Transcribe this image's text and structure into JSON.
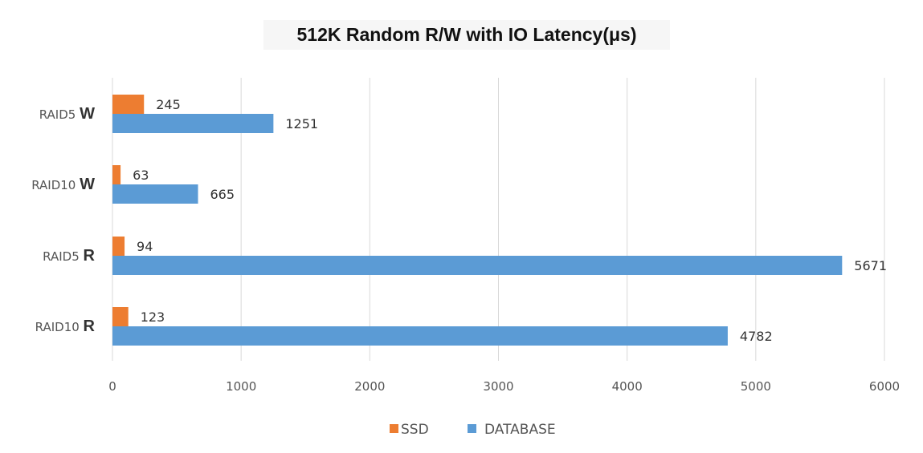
{
  "chart_data": {
    "type": "bar",
    "orientation": "horizontal",
    "title": "512K Random R/W with IO Latency(μs)",
    "categories": [
      {
        "prefix": "RAID5",
        "suffix": "W"
      },
      {
        "prefix": "RAID10",
        "suffix": "W"
      },
      {
        "prefix": "RAID5",
        "suffix": "R"
      },
      {
        "prefix": "RAID10",
        "suffix": "R"
      }
    ],
    "series": [
      {
        "name": "SSD",
        "color": "#ed7d31",
        "values": [
          245,
          63,
          94,
          123
        ]
      },
      {
        "name": "DATABASE",
        "color": "#5b9bd5",
        "values": [
          1251,
          665,
          5671,
          4782
        ]
      }
    ],
    "xlim": [
      0,
      6000
    ],
    "xticks": [
      "0",
      "1000",
      "2000",
      "3000",
      "4000",
      "5000",
      "6000"
    ],
    "grid": true,
    "legend_position": "bottom"
  }
}
